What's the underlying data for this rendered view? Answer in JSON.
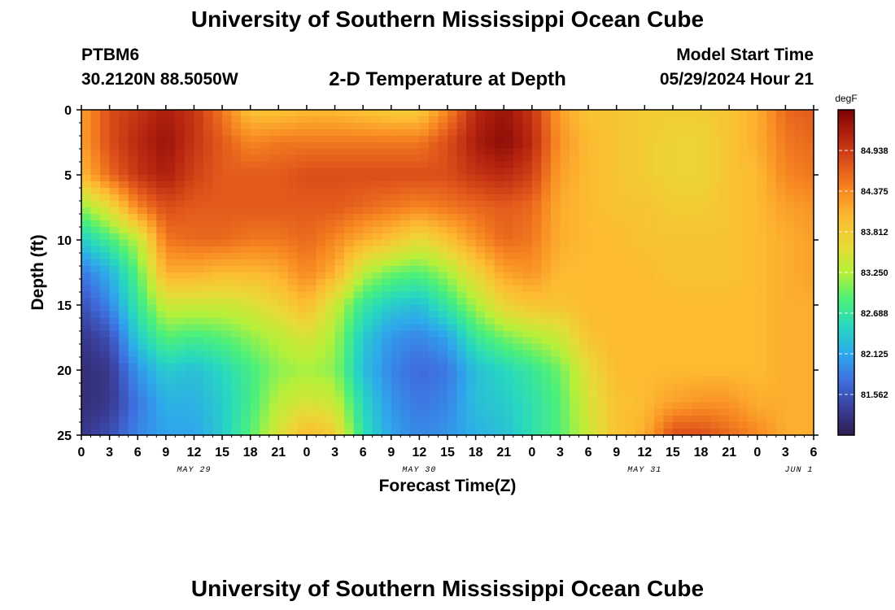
{
  "header": {
    "title": "University of Southern Mississippi Ocean Cube",
    "station": "PTBM6",
    "coords": "30.2120N  88.5050W",
    "subtitle": "2-D Temperature at Depth",
    "model_start_label": "Model Start Time",
    "model_start_value": "05/29/2024 Hour 21"
  },
  "footer": {
    "title": "University of Southern Mississippi Ocean Cube"
  },
  "chart_data": {
    "type": "heatmap",
    "xlabel": "Forecast Time(Z)",
    "ylabel": "Depth (ft)",
    "x_tick_labels": [
      "0",
      "3",
      "6",
      "9",
      "12",
      "15",
      "18",
      "21",
      "0",
      "3",
      "6",
      "9",
      "12",
      "15",
      "18",
      "21",
      "0",
      "3",
      "6",
      "9",
      "12",
      "15",
      "18",
      "21",
      "0",
      "3",
      "6"
    ],
    "day_labels": [
      "MAY 29",
      "MAY 30",
      "MAY 31",
      "JUN 1"
    ],
    "x_range_hours": [
      0,
      78
    ],
    "y_ticks": [
      0,
      5,
      10,
      15,
      20,
      25
    ],
    "ylim": [
      0,
      25
    ],
    "y_reversed": true,
    "colorbar": {
      "unit": "degF",
      "ticks": [
        "84.938",
        "84.375",
        "83.812",
        "83.250",
        "82.688",
        "82.125",
        "81.562"
      ],
      "range": [
        81.0,
        85.5
      ],
      "colors": [
        "#2d1b4e",
        "#3a3f9a",
        "#3f6fe0",
        "#2ea8ec",
        "#27d8c0",
        "#4cf07a",
        "#b5f03a",
        "#e8da37",
        "#fdbb32",
        "#f88a22",
        "#e0531a",
        "#b72410",
        "#7a0403"
      ]
    },
    "temperature_grid": {
      "x_hours": [
        0,
        3,
        6,
        9,
        12,
        15,
        18,
        21,
        24,
        27,
        30,
        33,
        36,
        39,
        42,
        45,
        48,
        51,
        54,
        57,
        60,
        63,
        66,
        69,
        72,
        75,
        78
      ],
      "depth_ft": [
        0,
        2.5,
        5,
        7.5,
        10,
        12.5,
        15,
        17.5,
        20,
        22.5,
        25
      ],
      "values_degF": [
        [
          84.2,
          84.8,
          85.0,
          85.2,
          85.0,
          84.5,
          83.9,
          83.9,
          84.0,
          84.0,
          83.9,
          83.8,
          83.8,
          84.4,
          85.1,
          85.3,
          85.0,
          84.2,
          83.9,
          83.9,
          83.8,
          83.8,
          83.8,
          83.9,
          84.1,
          84.6,
          84.7
        ],
        [
          84.2,
          84.8,
          85.1,
          85.3,
          85.0,
          84.7,
          84.4,
          84.5,
          84.5,
          84.5,
          84.5,
          84.5,
          84.5,
          84.8,
          85.2,
          85.4,
          85.1,
          84.3,
          84.0,
          83.9,
          83.8,
          83.7,
          83.7,
          83.9,
          84.1,
          84.5,
          84.6
        ],
        [
          84.0,
          84.6,
          85.0,
          85.2,
          84.9,
          84.7,
          84.7,
          84.7,
          84.8,
          84.8,
          84.8,
          84.8,
          84.8,
          84.8,
          85.0,
          85.1,
          84.9,
          84.2,
          84.0,
          83.9,
          83.8,
          83.7,
          83.7,
          83.9,
          84.0,
          84.4,
          84.5
        ],
        [
          83.1,
          83.6,
          84.4,
          84.8,
          84.7,
          84.7,
          84.7,
          84.7,
          84.7,
          84.7,
          84.6,
          84.5,
          84.4,
          84.5,
          84.6,
          84.7,
          84.6,
          84.1,
          84.0,
          83.9,
          83.9,
          83.8,
          83.8,
          83.9,
          84.0,
          84.2,
          84.3
        ],
        [
          82.4,
          82.8,
          83.3,
          84.5,
          84.6,
          84.6,
          84.5,
          84.5,
          84.6,
          84.4,
          84.1,
          83.9,
          83.6,
          83.9,
          84.3,
          84.6,
          84.5,
          84.1,
          84.0,
          84.0,
          83.9,
          83.9,
          83.9,
          83.9,
          84.0,
          84.1,
          84.2
        ],
        [
          81.8,
          82.2,
          82.9,
          84.1,
          84.1,
          84.0,
          84.0,
          84.1,
          84.4,
          84.1,
          83.3,
          83.0,
          82.9,
          83.2,
          83.7,
          84.2,
          84.3,
          84.0,
          84.0,
          84.0,
          84.0,
          83.9,
          83.9,
          83.9,
          84.0,
          84.1,
          84.2
        ],
        [
          81.5,
          81.9,
          82.7,
          83.4,
          83.4,
          83.4,
          83.5,
          83.7,
          84.0,
          83.4,
          82.7,
          82.4,
          82.3,
          82.7,
          83.2,
          83.7,
          83.9,
          83.9,
          84.0,
          84.0,
          84.0,
          84.0,
          84.0,
          84.0,
          84.0,
          84.1,
          84.1
        ],
        [
          81.3,
          81.5,
          82.4,
          82.9,
          82.8,
          82.9,
          83.1,
          83.3,
          83.5,
          83.2,
          82.4,
          82.0,
          81.9,
          82.1,
          82.7,
          83.0,
          83.2,
          83.4,
          83.9,
          84.0,
          84.0,
          84.0,
          84.0,
          84.0,
          84.0,
          84.1,
          84.1
        ],
        [
          81.2,
          81.3,
          82.0,
          82.4,
          82.3,
          82.5,
          82.8,
          83.1,
          83.2,
          83.1,
          82.3,
          81.9,
          81.7,
          81.8,
          82.3,
          82.5,
          82.7,
          83.0,
          83.6,
          84.0,
          84.0,
          84.0,
          84.0,
          84.0,
          84.0,
          84.1,
          84.1
        ],
        [
          81.2,
          81.3,
          81.8,
          82.2,
          82.2,
          82.4,
          82.8,
          83.3,
          83.5,
          83.4,
          82.5,
          82.0,
          81.8,
          81.9,
          82.3,
          82.4,
          82.6,
          82.9,
          83.5,
          83.9,
          84.0,
          84.2,
          84.3,
          84.3,
          84.1,
          84.1,
          84.1
        ],
        [
          81.3,
          81.5,
          81.9,
          82.1,
          82.1,
          82.4,
          82.9,
          83.5,
          84.0,
          83.8,
          82.6,
          82.1,
          81.9,
          82.0,
          82.2,
          82.3,
          82.6,
          82.9,
          83.4,
          83.9,
          84.1,
          84.8,
          84.8,
          84.6,
          84.4,
          84.1,
          84.1
        ]
      ]
    }
  }
}
